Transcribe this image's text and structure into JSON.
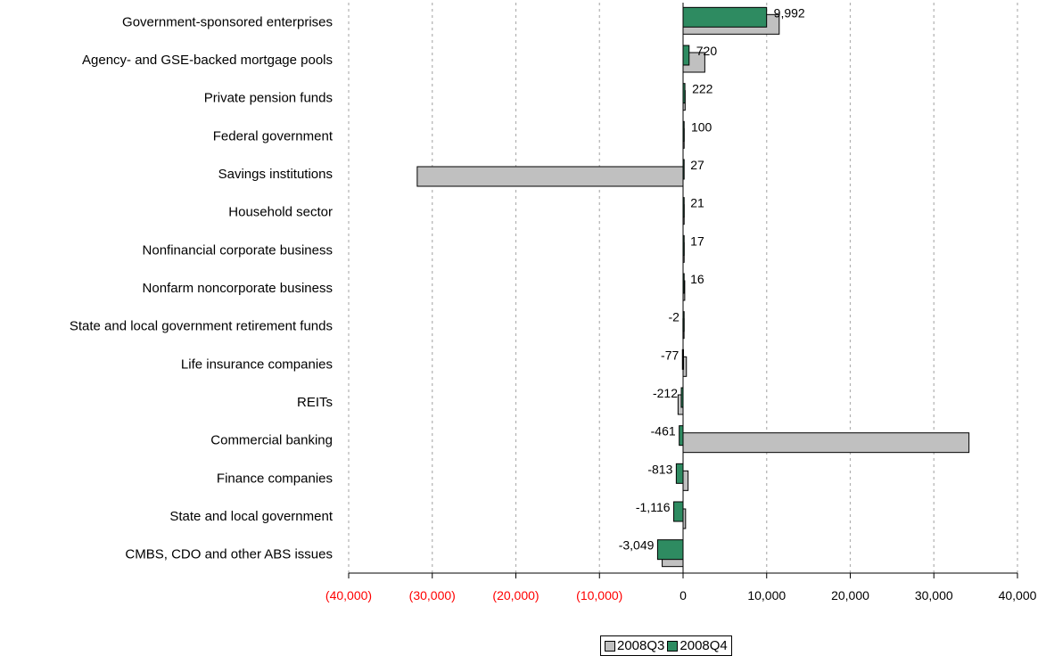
{
  "chart_data": {
    "type": "bar",
    "orientation": "horizontal",
    "categories": [
      "Government-sponsored enterprises",
      "Agency- and GSE-backed mortgage pools",
      "Private pension funds",
      "Federal government",
      "Savings institutions",
      "Household sector",
      "Nonfinancial corporate business",
      "Nonfarm noncorporate business",
      "State and local government retirement funds",
      "Life insurance companies",
      "REITs",
      "Commercial banking",
      "Finance companies",
      "State and local government",
      "CMBS, CDO and other ABS issues"
    ],
    "series": [
      {
        "name": "2008Q3",
        "color": "#c0c0c0",
        "values": [
          11500,
          2600,
          250,
          80,
          -31800,
          30,
          20,
          200,
          -10,
          400,
          -600,
          34200,
          600,
          300,
          -2500
        ]
      },
      {
        "name": "2008Q4",
        "color": "#2e8b61",
        "values": [
          9992,
          720,
          222,
          100,
          27,
          21,
          17,
          16,
          -2,
          -77,
          -212,
          -461,
          -813,
          -1116,
          -3049
        ]
      }
    ],
    "data_labels": [
      "9,992",
      "720",
      "222",
      "100",
      "27",
      "21",
      "17",
      "16",
      "-2",
      "-77",
      "-212",
      "-461",
      "-813",
      "-1,116",
      "-3,049"
    ],
    "xlim": [
      -40000,
      40000
    ],
    "xticks": [
      -40000,
      -30000,
      -20000,
      -10000,
      0,
      10000,
      20000,
      30000,
      40000
    ],
    "xtick_labels": [
      "(40,000)",
      "(30,000)",
      "(20,000)",
      "(10,000)",
      "0",
      "10,000",
      "20,000",
      "30,000",
      "40,000"
    ],
    "negative_tick_color": "#ff0000",
    "grid": "vertical dotted",
    "legend_position": "bottom-center",
    "title": "",
    "xlabel": "",
    "ylabel": ""
  }
}
